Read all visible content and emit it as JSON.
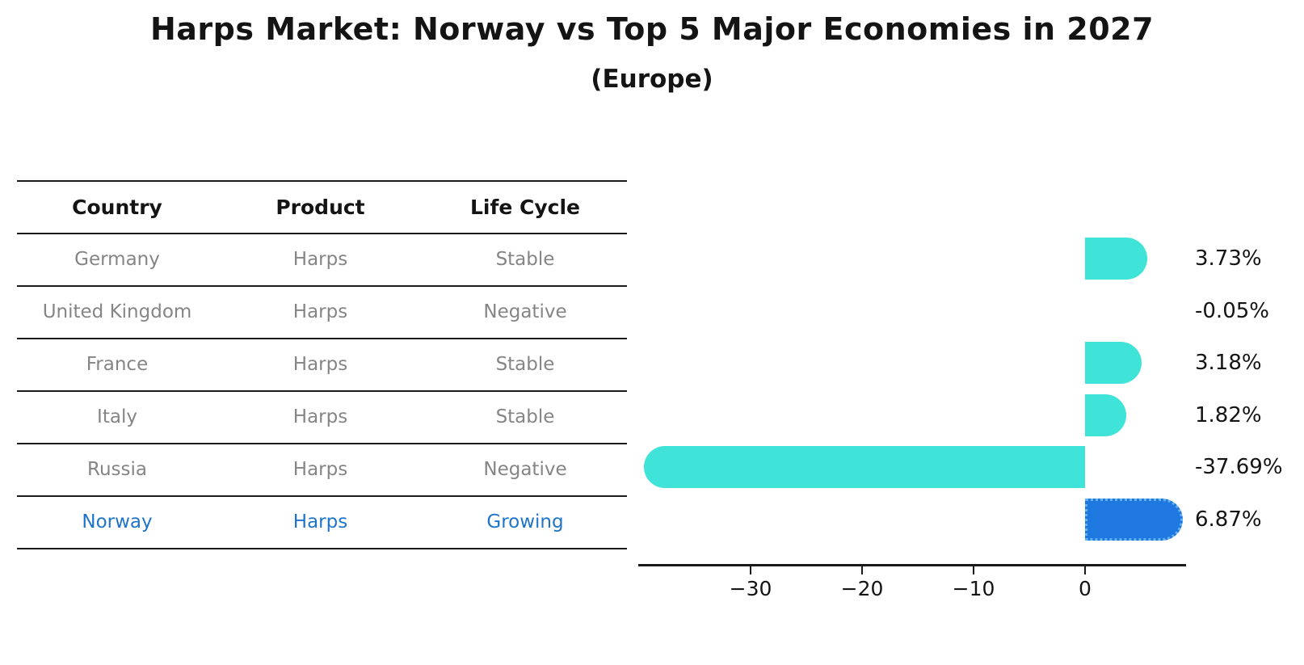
{
  "title": "Harps Market: Norway vs Top 5 Major Economies in 2027",
  "subtitle": "(Europe)",
  "table": {
    "headers": [
      "Country",
      "Product",
      "Life Cycle"
    ],
    "rows": [
      {
        "country": "Germany",
        "product": "Harps",
        "life_cycle": "Stable",
        "highlight": false
      },
      {
        "country": "United Kingdom",
        "product": "Harps",
        "life_cycle": "Negative",
        "highlight": false
      },
      {
        "country": "France",
        "product": "Harps",
        "life_cycle": "Stable",
        "highlight": false
      },
      {
        "country": "Italy",
        "product": "Harps",
        "life_cycle": "Stable",
        "highlight": false
      },
      {
        "country": "Russia",
        "product": "Harps",
        "life_cycle": "Negative",
        "highlight": false
      },
      {
        "country": "Norway",
        "product": "Harps",
        "life_cycle": "Growing",
        "highlight": true
      }
    ]
  },
  "chart_data": {
    "type": "bar",
    "orientation": "horizontal",
    "title": "Harps Market: Norway vs Top 5 Major Economies in 2027",
    "subtitle": "(Europe)",
    "xlabel": "",
    "ylabel": "",
    "categories": [
      "Germany",
      "United Kingdom",
      "France",
      "Italy",
      "Russia",
      "Norway"
    ],
    "values": [
      3.73,
      -0.05,
      3.18,
      1.82,
      -37.69,
      6.87
    ],
    "value_labels": [
      "3.73%",
      "-0.05%",
      "3.18%",
      "1.82%",
      "-37.69%",
      "6.87%"
    ],
    "highlight_category": "Norway",
    "xlim": [
      -40,
      9
    ],
    "grid": false,
    "legend": "none",
    "xticks": [
      {
        "label": "−30",
        "value": -30
      },
      {
        "label": "−20",
        "value": -20
      },
      {
        "label": "−10",
        "value": -10
      },
      {
        "label": "0",
        "value": 0
      }
    ],
    "colors": {
      "bar_default": "#40E3D8",
      "bar_highlight": "#1E78E0",
      "bar_highlight_border": "#66B2F0",
      "highlight_text": "#1E74C9",
      "table_text": "#858585",
      "axis_text": "#141414"
    }
  }
}
